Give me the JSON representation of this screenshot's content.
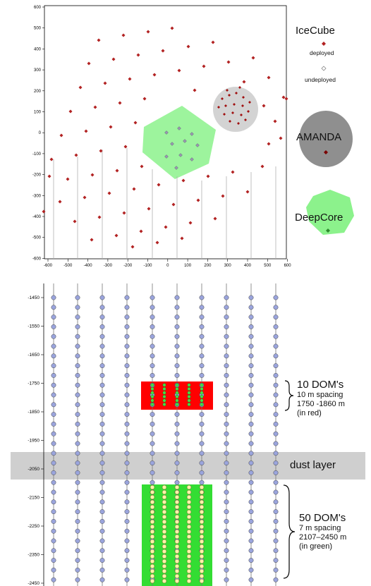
{
  "top_axes": {
    "x_ticks": [
      "-600",
      "-500",
      "-400",
      "-300",
      "-200",
      "-100",
      "0",
      "100",
      "200",
      "300",
      "400",
      "500",
      "600"
    ],
    "y_ticks": [
      "600",
      "500",
      "400",
      "300",
      "200",
      "100",
      "0",
      "-100",
      "-200",
      "-300",
      "-400",
      "-500",
      "-600"
    ]
  },
  "legend": {
    "icecube": "IceCube",
    "deployed": "deployed",
    "undeployed": "undeployed",
    "amanda": "AMANDA",
    "deepcore": "DeepCore"
  },
  "depth_axis": {
    "ticks": [
      "-1450",
      "-1550",
      "-1650",
      "-1750",
      "-1850",
      "-1950",
      "-2050",
      "-2150",
      "-2250",
      "-2350",
      "-2450"
    ]
  },
  "annotations": {
    "red_block": {
      "title": "10 DOM's",
      "lines": [
        "10 m spacing",
        "1750 -1860 m",
        "(in red)"
      ]
    },
    "dust": "dust layer",
    "green_block": {
      "title": "50 DOM's",
      "lines": [
        "7 m spacing",
        "2107–2450 m",
        "(in green)"
      ]
    }
  },
  "colors": {
    "deployed": "#b22222",
    "undeployed": "#9a9ab0",
    "amanda": "#bdbdbd",
    "deepcore": "#8cf28c",
    "red_block": "#ff0000",
    "green_block": "#33dd33",
    "dust": "#cfcfcf",
    "dom_blue": "#9aa4dc"
  }
}
